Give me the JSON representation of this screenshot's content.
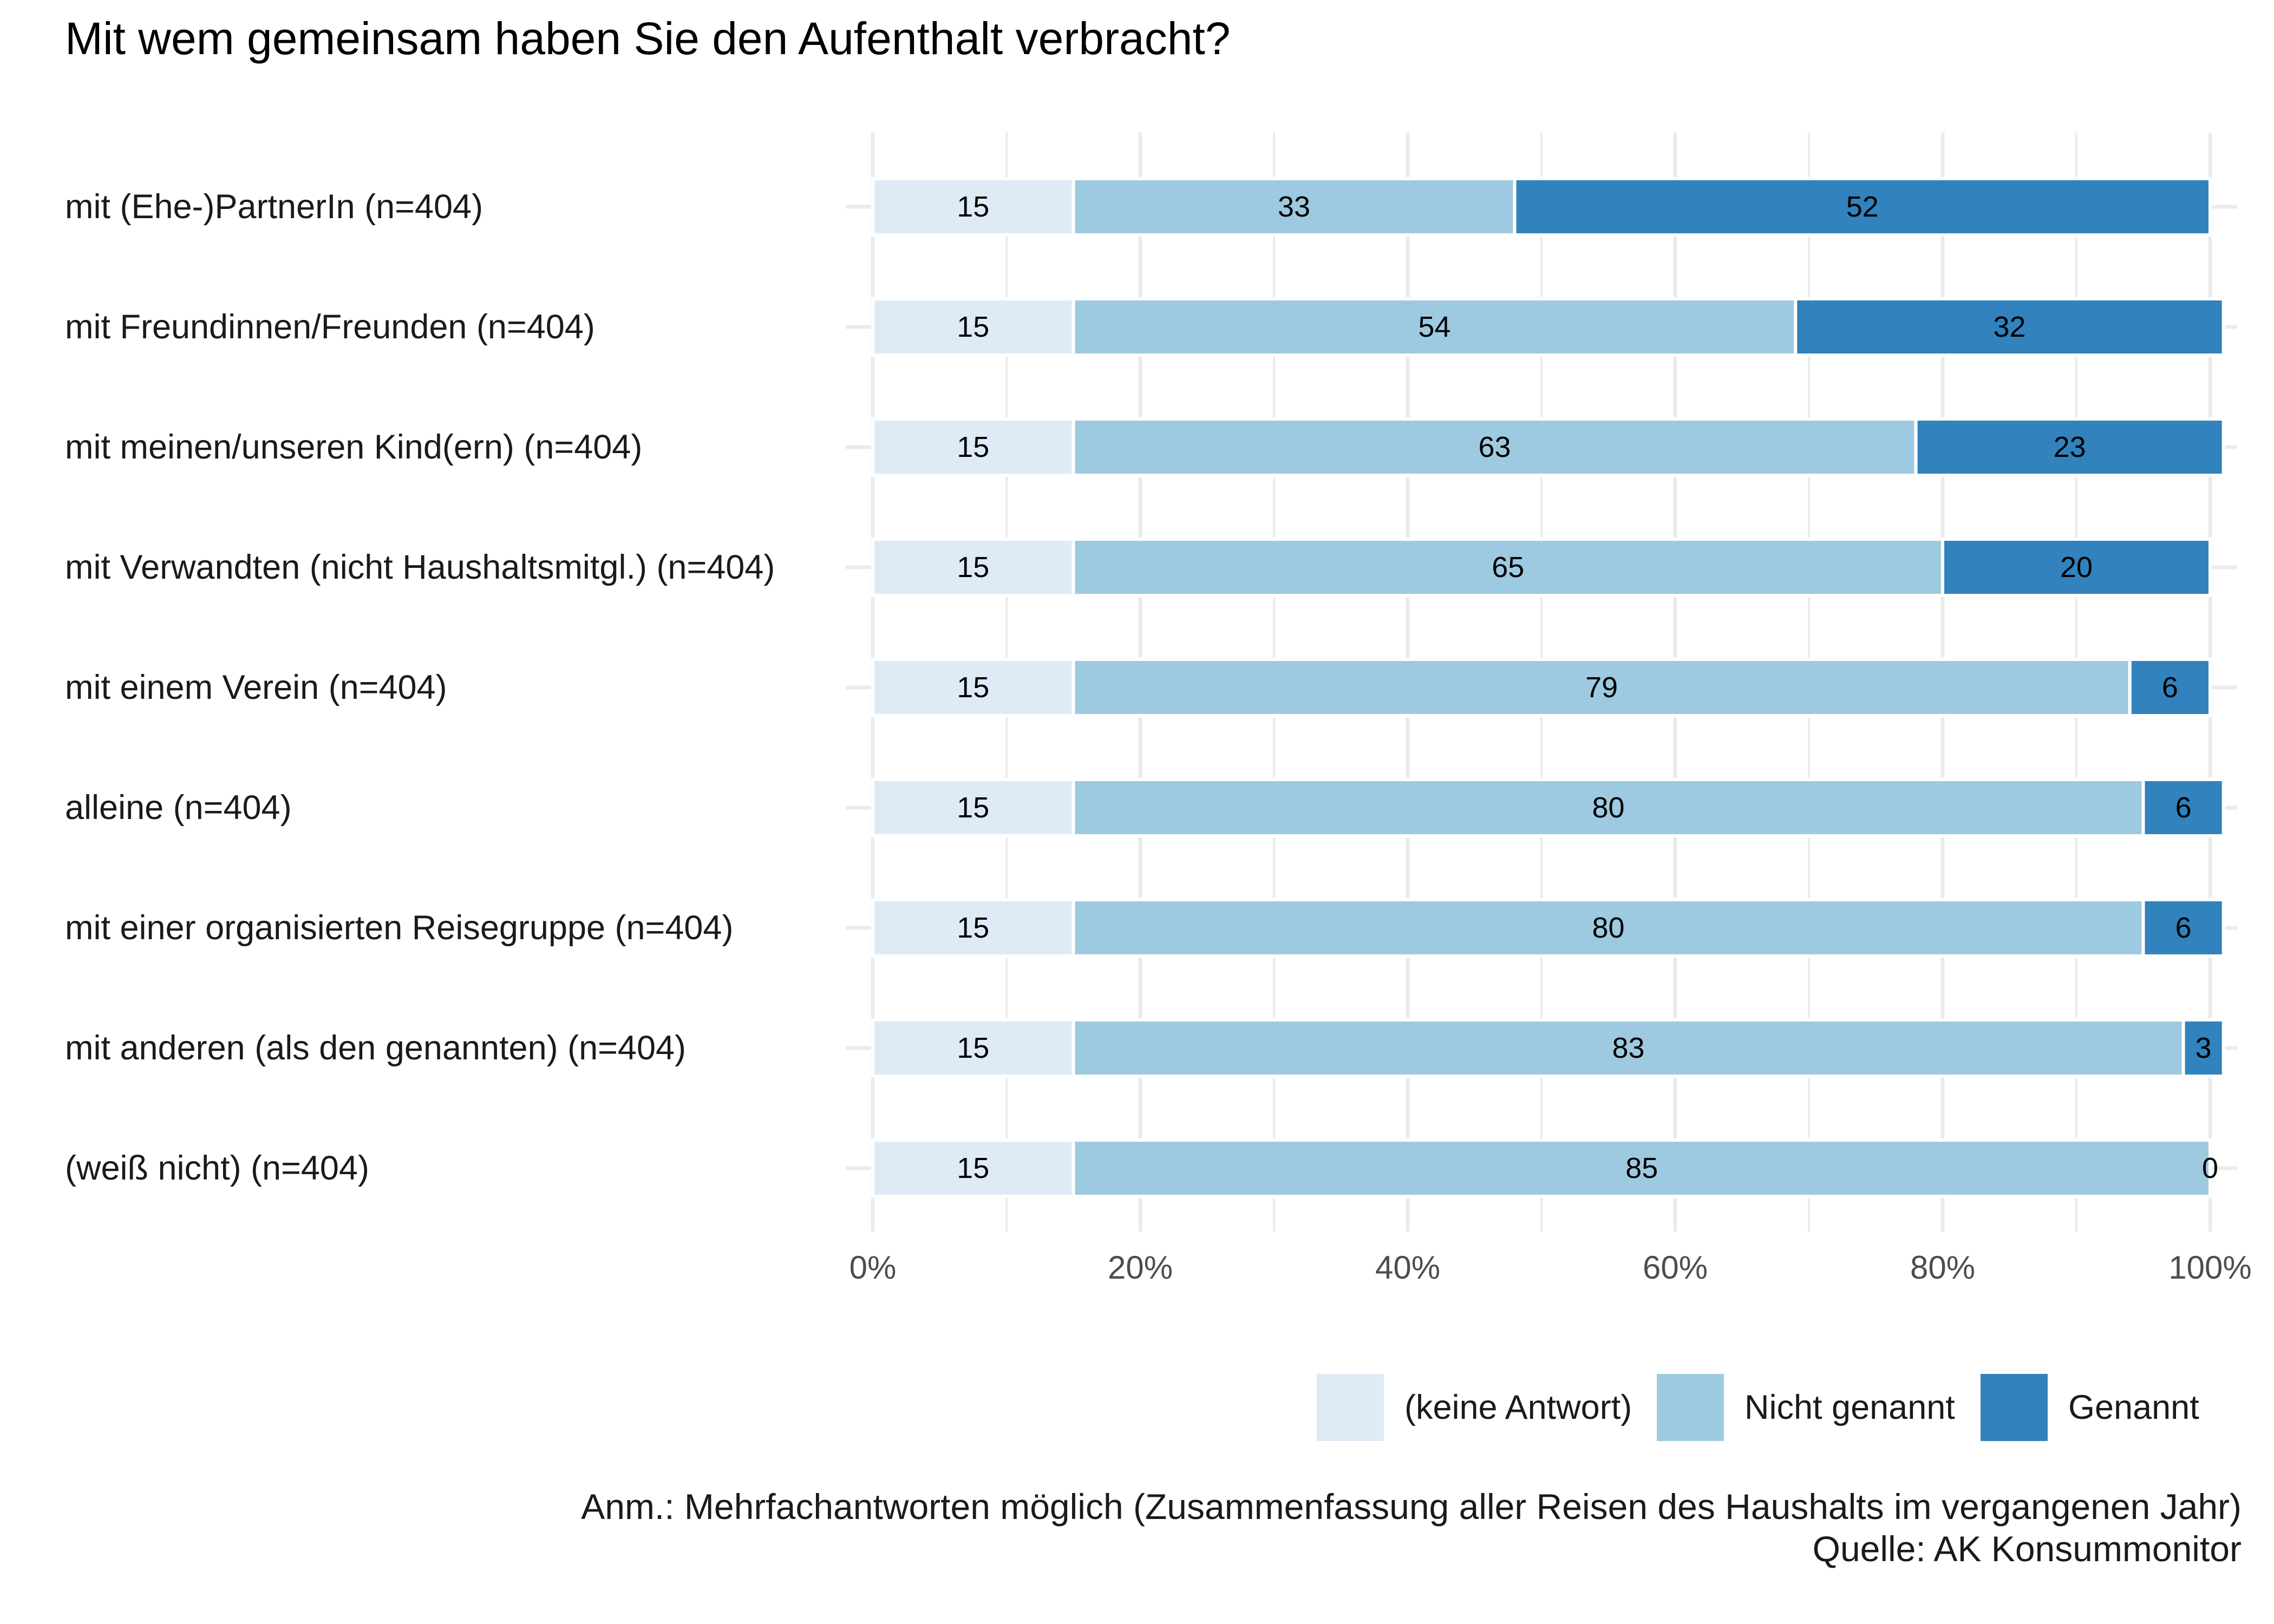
{
  "chart_data": {
    "type": "bar",
    "orientation": "horizontal",
    "stacked": true,
    "title": "Mit wem gemeinsam haben Sie den Aufenthalt verbracht?",
    "categories": [
      "mit (Ehe-)PartnerIn (n=404)",
      "mit Freundinnen/Freunden (n=404)",
      "mit meinen/unseren Kind(ern) (n=404)",
      "mit Verwandten (nicht Haushaltsmitgl.) (n=404)",
      "mit einem Verein (n=404)",
      "alleine (n=404)",
      "mit einer organisierten Reisegruppe (n=404)",
      "mit anderen (als den genannten) (n=404)",
      "(weiß nicht) (n=404)"
    ],
    "series": [
      {
        "name": "(keine Antwort)",
        "color": "#deebf7",
        "values": [
          15,
          15,
          15,
          15,
          15,
          15,
          15,
          15,
          15
        ]
      },
      {
        "name": "Nicht genannt",
        "color": "#9ecae1",
        "values": [
          33,
          54,
          63,
          65,
          79,
          80,
          80,
          83,
          85
        ]
      },
      {
        "name": "Genannt",
        "color": "#3182bd",
        "values": [
          52,
          32,
          23,
          20,
          6,
          6,
          6,
          3,
          0
        ]
      }
    ],
    "xlim": [
      0,
      100
    ],
    "xticks": [
      "0%",
      "20%",
      "40%",
      "60%",
      "80%",
      "100%"
    ],
    "grid": true,
    "legend_position": "bottom-right",
    "xlabel": "",
    "ylabel": ""
  },
  "notes": {
    "remark": "Anm.: Mehrfachantworten möglich (Zusammenfassung aller Reisen des Haushalts im vergangenen Jahr)",
    "source": "Quelle: AK Konsummonitor"
  }
}
